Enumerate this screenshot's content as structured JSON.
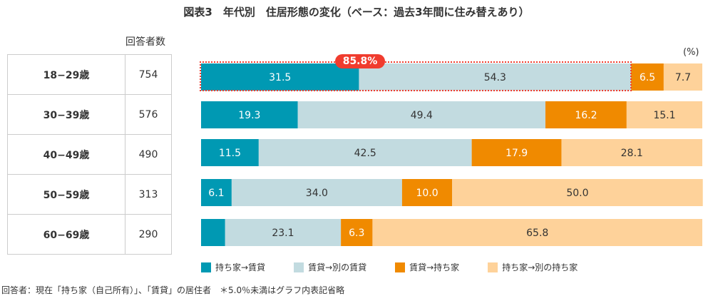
{
  "title": "図表3　年代別　住居形態の変化（ベース：過去3年間に住み替えあり）",
  "count_header": "回答者数",
  "unit": "(%)",
  "highlight": "85.8%",
  "note": "回答者：現在「持ち家（自己所有）」、「賃貸」の居住者　＊5.0％未満はグラフ内表記省略",
  "rows": [
    {
      "age": "18−29歳",
      "count": "754"
    },
    {
      "age": "30−39歳",
      "count": "576"
    },
    {
      "age": "40−49歳",
      "count": "490"
    },
    {
      "age": "50−59歳",
      "count": "313"
    },
    {
      "age": "60−69歳",
      "count": "290"
    }
  ],
  "chart_data": {
    "type": "bar",
    "orientation": "horizontal",
    "stacked": true,
    "xlim": [
      0,
      100
    ],
    "unit": "(%)",
    "categories": [
      "18−29歳",
      "30−39歳",
      "40−49歳",
      "50−59歳",
      "60−69歳"
    ],
    "series": [
      {
        "name": "持ち家→賃貸",
        "color": "#0099b3",
        "text": "#fff",
        "values": [
          31.5,
          19.3,
          11.5,
          6.1,
          4.8
        ]
      },
      {
        "name": "賃貸→別の賃貸",
        "color": "#c2dbe0",
        "text": "#333",
        "values": [
          54.3,
          49.4,
          42.5,
          34.0,
          23.1
        ]
      },
      {
        "name": "賃貸→持ち家",
        "color": "#f08a00",
        "text": "#fff",
        "values": [
          6.5,
          16.2,
          17.9,
          10.0,
          6.3
        ]
      },
      {
        "name": "持ち家→別の持ち家",
        "color": "#fed29a",
        "text": "#333",
        "values": [
          7.7,
          15.1,
          28.1,
          50.0,
          65.8
        ]
      }
    ],
    "label_threshold": 5.0
  }
}
